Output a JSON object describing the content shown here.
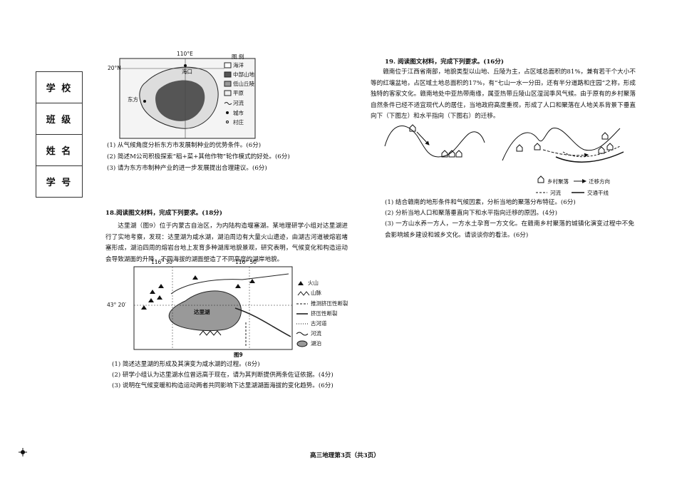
{
  "sidebar": {
    "labels": [
      "学 校",
      "班 级",
      "姓 名",
      "学 号"
    ]
  },
  "q17": {
    "map": {
      "longitude": "110°E",
      "latitude": "20°N",
      "places": [
        "海口",
        "东方"
      ],
      "legend_title": "图 例",
      "legend": [
        "海洋",
        "中部山地",
        "低山丘陵",
        "平原",
        "河流",
        "城市",
        "村庄"
      ]
    },
    "questions": [
      "(1) 从气候角度分析东方市发展制种业的优势条件。(6分)",
      "(2) 简述M公司积极探索“稻+菜+其他作物”轮作模式的好处。(6分)",
      "(3) 请为东方市制种产业的进一步发展提出合理建议。(6分)"
    ]
  },
  "q18": {
    "heading": "18.阅读图文材料，完成下列要求。(18分)",
    "text": "达里湖（图9）位于内蒙古自治区，为内陆构造堰塞湖。某地理研学小组对达里湖进行了实地考察，发现：达里湖为咸水湖，湖泊周边有大量火山遗迹，由湖古河道被熔岩堵塞形成，湖泊四周的熔岩台地上发育多种湖库地貌景观，研究表明，气候变化和构造运动会导致湖面的升降，不同海拔的湖面塑造了不同高度的湖岸地貌。",
    "map": {
      "longitudes": [
        "116° 30′",
        "116° 50′"
      ],
      "latitude": "43° 20′",
      "lake": "达里湖",
      "legend": [
        "火山",
        "山脉",
        "推测挤压性断裂",
        "挤压性断裂",
        "古河道",
        "河流",
        "湖泊"
      ],
      "caption": "图9"
    },
    "questions": [
      "(1) 简述达里湖的形成及其演变为咸水湖的过程。(8分)",
      "(2) 研学小组认为达里湖水位曾远高于现在，请为其判断提供两条佐证依据。(4分)",
      "(3) 说明在气候变暖和构造运动两者共同影响下达里湖湖面海拔的变化趋势。(6分)"
    ]
  },
  "q19": {
    "heading": "19. 阅读图文材料，完成下列要求。(16分)",
    "text": "赣南位于江西省南部，地貌类型以山地、丘陵为主，占区域总面积的81%，兼有若干个大小不等的红壤盆地，占区域土地总面积的17%，有“七山一水一分田，还有半分道路和庄园”之称，形成独特的客家文化。赣南地处中亚热带南缘，属亚热带丘陵山区湿润季风气候。由于原有的乡村聚落自然条件已经不适宜现代人的居住，当地政府高度重视，形成了人口和聚落在人地关系背景下垂直向下（下图左）和水平指向（下图右）的迁移。",
    "legend": [
      "乡村聚落",
      "迁移方向",
      "河流",
      "交通干线"
    ],
    "questions": [
      "(1) 结合赣南的地形条件和气候因素，分析当地的聚落分布特征。(6分)",
      "(2) 分析当地人口和聚落垂直向下和水平指向迁移的原因。(4分)",
      "(3) 一方山水养一方人，一方水土孕育一方文化。在赣南乡村聚落的城镇化演变过程中不免会影响城乡建设和城乡文化。请谈谈你的看法。(6分)"
    ]
  },
  "footer": "高三地理第3页（共3页）"
}
